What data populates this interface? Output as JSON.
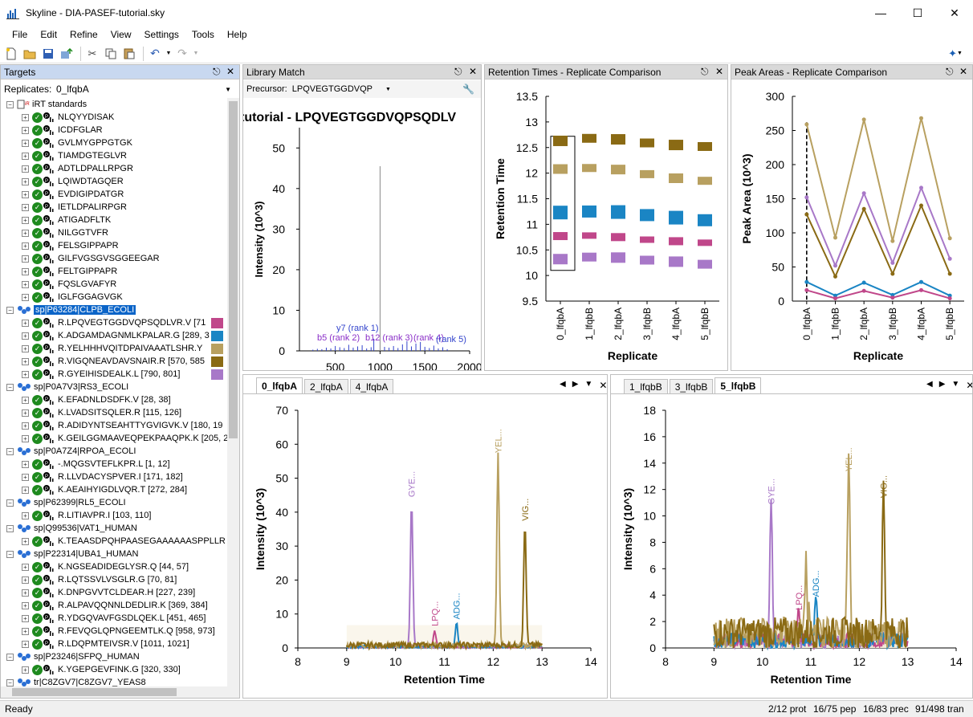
{
  "window": {
    "title": "Skyline - DIA-PASEF-tutorial.sky"
  },
  "menu": [
    "File",
    "Edit",
    "Refine",
    "View",
    "Settings",
    "Tools",
    "Help"
  ],
  "targets": {
    "title": "Targets",
    "replicates_label": "Replicates:",
    "replicate_selected": "0_lfqbA",
    "rows": [
      {
        "t": "irt",
        "label": "iRT standards"
      },
      {
        "t": "pep",
        "label": "NLQYYDISAK"
      },
      {
        "t": "pep",
        "label": "ICDFGLAR"
      },
      {
        "t": "pep",
        "label": "GVLMYGPPGTGK"
      },
      {
        "t": "pep",
        "label": "TIAMDGTEGLVR"
      },
      {
        "t": "pep",
        "label": "ADTLDPALLRPGR"
      },
      {
        "t": "pep",
        "label": "LQIWDTAGQER"
      },
      {
        "t": "pep",
        "label": "EVDIGIPDATGR"
      },
      {
        "t": "pep",
        "label": "IETLDPALIRPGR"
      },
      {
        "t": "pep",
        "label": "ATIGADFLTK"
      },
      {
        "t": "pep",
        "label": "NILGGTVFR"
      },
      {
        "t": "pep",
        "label": "FELSGIPPAPR"
      },
      {
        "t": "pep",
        "label": "GILFVGSGVSGGEEGAR"
      },
      {
        "t": "pep",
        "label": "FELTGIPPAPR"
      },
      {
        "t": "pep",
        "label": "FQSLGVAFYR"
      },
      {
        "t": "pep",
        "label": "IGLFGGAGVGK"
      },
      {
        "t": "prot",
        "label": "sp|P63284|CLPB_ECOLI",
        "sel": true
      },
      {
        "t": "pep",
        "label": "R.LPQVEGTGGDVQPSQDLVR.V [71",
        "sw": "#c0478a"
      },
      {
        "t": "pep",
        "label": "K.ADGAMDAGNMLKPALAR.G [289, 3",
        "sw": "#1a85c4"
      },
      {
        "t": "pep",
        "label": "R.YELHHHVQITDPAIVAAATLSHR.Y",
        "sw": "#b8a060"
      },
      {
        "t": "pep",
        "label": "R.VIGQNEAVDAVSNAIR.R [570, 585",
        "sw": "#8a6a14"
      },
      {
        "t": "pep",
        "label": "R.GYEIHISDEALK.L [790, 801]",
        "sw": "#a878c8"
      },
      {
        "t": "prot",
        "label": "sp|P0A7V3|RS3_ECOLI"
      },
      {
        "t": "pep",
        "label": "K.EFADNLDSDFK.V [28, 38]"
      },
      {
        "t": "pep",
        "label": "K.LVADSITSQLER.R [115, 126]"
      },
      {
        "t": "pep",
        "label": "R.ADIDYNTSEAHTTYGVIGVK.V [180, 19"
      },
      {
        "t": "pep",
        "label": "K.GEILGGMAAVEQPEKPAAQPK.K [205, 2"
      },
      {
        "t": "prot",
        "label": "sp|P0A7Z4|RPOA_ECOLI"
      },
      {
        "t": "pep",
        "label": "-.MQGSVTEFLKPR.L [1, 12]"
      },
      {
        "t": "pep",
        "label": "R.LLVDACYSPVER.I [171, 182]"
      },
      {
        "t": "pep",
        "label": "K.AEAIHYIGDLVQR.T [272, 284]"
      },
      {
        "t": "prot",
        "label": "sp|P62399|RL5_ECOLI"
      },
      {
        "t": "pep",
        "label": "R.LITIAVPR.I [103, 110]"
      },
      {
        "t": "prot",
        "label": "sp|Q99536|VAT1_HUMAN"
      },
      {
        "t": "pep",
        "label": "K.TEAASDPQHPAASEGAAAAAASPPLLR"
      },
      {
        "t": "prot",
        "label": "sp|P22314|UBA1_HUMAN"
      },
      {
        "t": "pep",
        "label": "K.NGSEADIDEGLYSR.Q [44, 57]"
      },
      {
        "t": "pep",
        "label": "R.LQTSSVLVSGLR.G [70, 81]"
      },
      {
        "t": "pep",
        "label": "K.DNPGVVTCLDEAR.H [227, 239]"
      },
      {
        "t": "pep",
        "label": "R.ALPAVQQNNLDEDLIR.K [369, 384]"
      },
      {
        "t": "pep",
        "label": "R.YDGQVAVFGSDLQEK.L [451, 465]"
      },
      {
        "t": "pep",
        "label": "R.FEVQGLQPNGEEMTLK.Q [958, 973]"
      },
      {
        "t": "pep",
        "label": "R.LDQPMTEIVSR.V [1011, 1021]"
      },
      {
        "t": "prot",
        "label": "sp|P23246|SFPQ_HUMAN"
      },
      {
        "t": "pep",
        "label": "K.YGEPGEVFINK.G [320, 330]"
      },
      {
        "t": "prot",
        "label": "tr|C8ZGV7|C8ZGV7_YEAS8"
      }
    ]
  },
  "library": {
    "title": "Library Match",
    "precursor_label": "Precursor:",
    "precursor_value": "LPQVEGTGGDVQP",
    "chart_title": "tutorial - LPQVEGTGGDVQPSQDLV",
    "chart_data": {
      "type": "bar",
      "xlabel": "m/z",
      "ylabel": "Intensity (10^3)",
      "xlim": [
        100,
        2000
      ],
      "ylim": [
        0,
        55
      ],
      "xticks": [
        500,
        1000,
        1500,
        2000
      ],
      "yticks": [
        0,
        10,
        20,
        30,
        40,
        50
      ],
      "peaks_mz": [
        250,
        300,
        350,
        400,
        450,
        500,
        550,
        600,
        650,
        700,
        750,
        800,
        850,
        900,
        930,
        1000,
        1050,
        1100,
        1150,
        1200,
        1250,
        1300,
        1350,
        1400,
        1450,
        1500,
        1550,
        1600,
        1650,
        1700,
        1750
      ],
      "peaks_int": [
        0.3,
        0.5,
        0.4,
        0.8,
        0.6,
        1.2,
        0.9,
        0.7,
        1.5,
        0.8,
        1.1,
        1.4,
        0.6,
        0.9,
        3.0,
        45.5,
        1.0,
        0.8,
        1.2,
        0.7,
        1.6,
        2.4,
        1.1,
        1.8,
        2.2,
        1.0,
        0.7,
        1.3,
        0.6,
        0.9,
        0.4
      ],
      "annotations": [
        "y7 (rank 1)",
        "b5 (rank 2)",
        "b12 (rank 3)",
        "(rank 4)",
        "(rank 5)"
      ]
    }
  },
  "rt": {
    "title": "Retention Times - Replicate Comparison",
    "chart_data": {
      "type": "box",
      "xlabel": "Replicate",
      "ylabel": "Retention Time",
      "categories": [
        "0_lfqbA",
        "1_lfqbB",
        "2_lfqbA",
        "3_lfqbB",
        "4_lfqbA",
        "5_lfqbB"
      ],
      "ylim": [
        9.5,
        13.5
      ],
      "yticks": [
        9.5,
        10,
        10.5,
        11,
        11.5,
        12,
        12.5,
        13,
        13.5
      ],
      "series": [
        {
          "color": "#8a6a14",
          "values": [
            12.63,
            12.68,
            12.66,
            12.59,
            12.55,
            12.52
          ]
        },
        {
          "color": "#b8a060",
          "values": [
            12.08,
            12.1,
            12.07,
            11.98,
            11.9,
            11.85
          ]
        },
        {
          "color": "#1a85c4",
          "values": [
            11.23,
            11.25,
            11.24,
            11.18,
            11.13,
            11.08
          ]
        },
        {
          "color": "#c0478a",
          "values": [
            10.77,
            10.78,
            10.75,
            10.7,
            10.67,
            10.64
          ]
        },
        {
          "color": "#a878c8",
          "values": [
            10.32,
            10.36,
            10.35,
            10.3,
            10.27,
            10.22
          ]
        }
      ]
    }
  },
  "areas": {
    "title": "Peak Areas - Replicate Comparison",
    "chart_data": {
      "type": "line",
      "xlabel": "Replicate",
      "ylabel": "Peak Area (10^3)",
      "categories": [
        "0_lfqbA",
        "1_lfqbB",
        "2_lfqbA",
        "3_lfqbB",
        "4_lfqbA",
        "5_lfqbB"
      ],
      "ylim": [
        0,
        300
      ],
      "yticks": [
        0,
        50,
        100,
        150,
        200,
        250,
        300
      ],
      "series": [
        {
          "color": "#b8a060",
          "values": [
            259,
            93,
            266,
            88,
            268,
            92
          ]
        },
        {
          "color": "#a878c8",
          "values": [
            152,
            52,
            158,
            56,
            166,
            62
          ]
        },
        {
          "color": "#8a6a14",
          "values": [
            127,
            36,
            135,
            40,
            140,
            40
          ]
        },
        {
          "color": "#1a85c4",
          "values": [
            28,
            8,
            27,
            9,
            28,
            8
          ]
        },
        {
          "color": "#c0478a",
          "values": [
            16,
            4,
            15,
            5,
            16,
            4
          ]
        }
      ]
    }
  },
  "chromA": {
    "tabs": [
      "0_lfqbA",
      "2_lfqbA",
      "4_lfqbA"
    ],
    "chart_data": {
      "type": "line",
      "xlabel": "Retention Time",
      "ylabel": "Intensity (10^3)",
      "xlim": [
        8,
        14
      ],
      "ylim": [
        0,
        70
      ],
      "xticks": [
        8,
        9,
        10,
        11,
        12,
        13,
        14
      ],
      "yticks": [
        0,
        10,
        20,
        30,
        40,
        50,
        60,
        70
      ],
      "peaks": [
        {
          "label": "GYE...",
          "color": "#a878c8",
          "rt": 10.33,
          "h": 43
        },
        {
          "label": "LPQ...",
          "color": "#c0478a",
          "rt": 10.8,
          "h": 5
        },
        {
          "label": "ADG...",
          "color": "#1a85c4",
          "rt": 11.25,
          "h": 7
        },
        {
          "label": "YEL...",
          "color": "#b8a060",
          "rt": 12.1,
          "h": 56
        },
        {
          "label": "VIG...",
          "color": "#8a6a14",
          "rt": 12.65,
          "h": 36
        }
      ]
    }
  },
  "chromB": {
    "tabs": [
      "1_lfqbB",
      "3_lfqbB",
      "5_lfqbB"
    ],
    "chart_data": {
      "type": "line",
      "xlabel": "Retention Time",
      "ylabel": "Intensity (10^3)",
      "xlim": [
        8,
        14
      ],
      "ylim": [
        0,
        18
      ],
      "xticks": [
        8,
        9,
        10,
        11,
        12,
        13,
        14
      ],
      "yticks": [
        0,
        2,
        4,
        6,
        8,
        10,
        12,
        14,
        16,
        18
      ],
      "peaks": [
        {
          "label": "GYE...",
          "color": "#a878c8",
          "rt": 10.18,
          "h": 10.5
        },
        {
          "label": "LPQ...",
          "color": "#c0478a",
          "rt": 10.75,
          "h": 2.5
        },
        {
          "label": "ADG...",
          "color": "#1a85c4",
          "rt": 11.1,
          "h": 3.5
        },
        {
          "label": "YEL...",
          "color": "#b8a060",
          "rt": 11.78,
          "h": 13
        },
        {
          "label": "VIG...",
          "color": "#8a6a14",
          "rt": 12.5,
          "h": 11
        }
      ]
    }
  },
  "status": {
    "ready": "Ready",
    "prot": "2/12 prot",
    "pep": "16/75 pep",
    "prec": "16/83 prec",
    "tran": "91/498 tran"
  }
}
